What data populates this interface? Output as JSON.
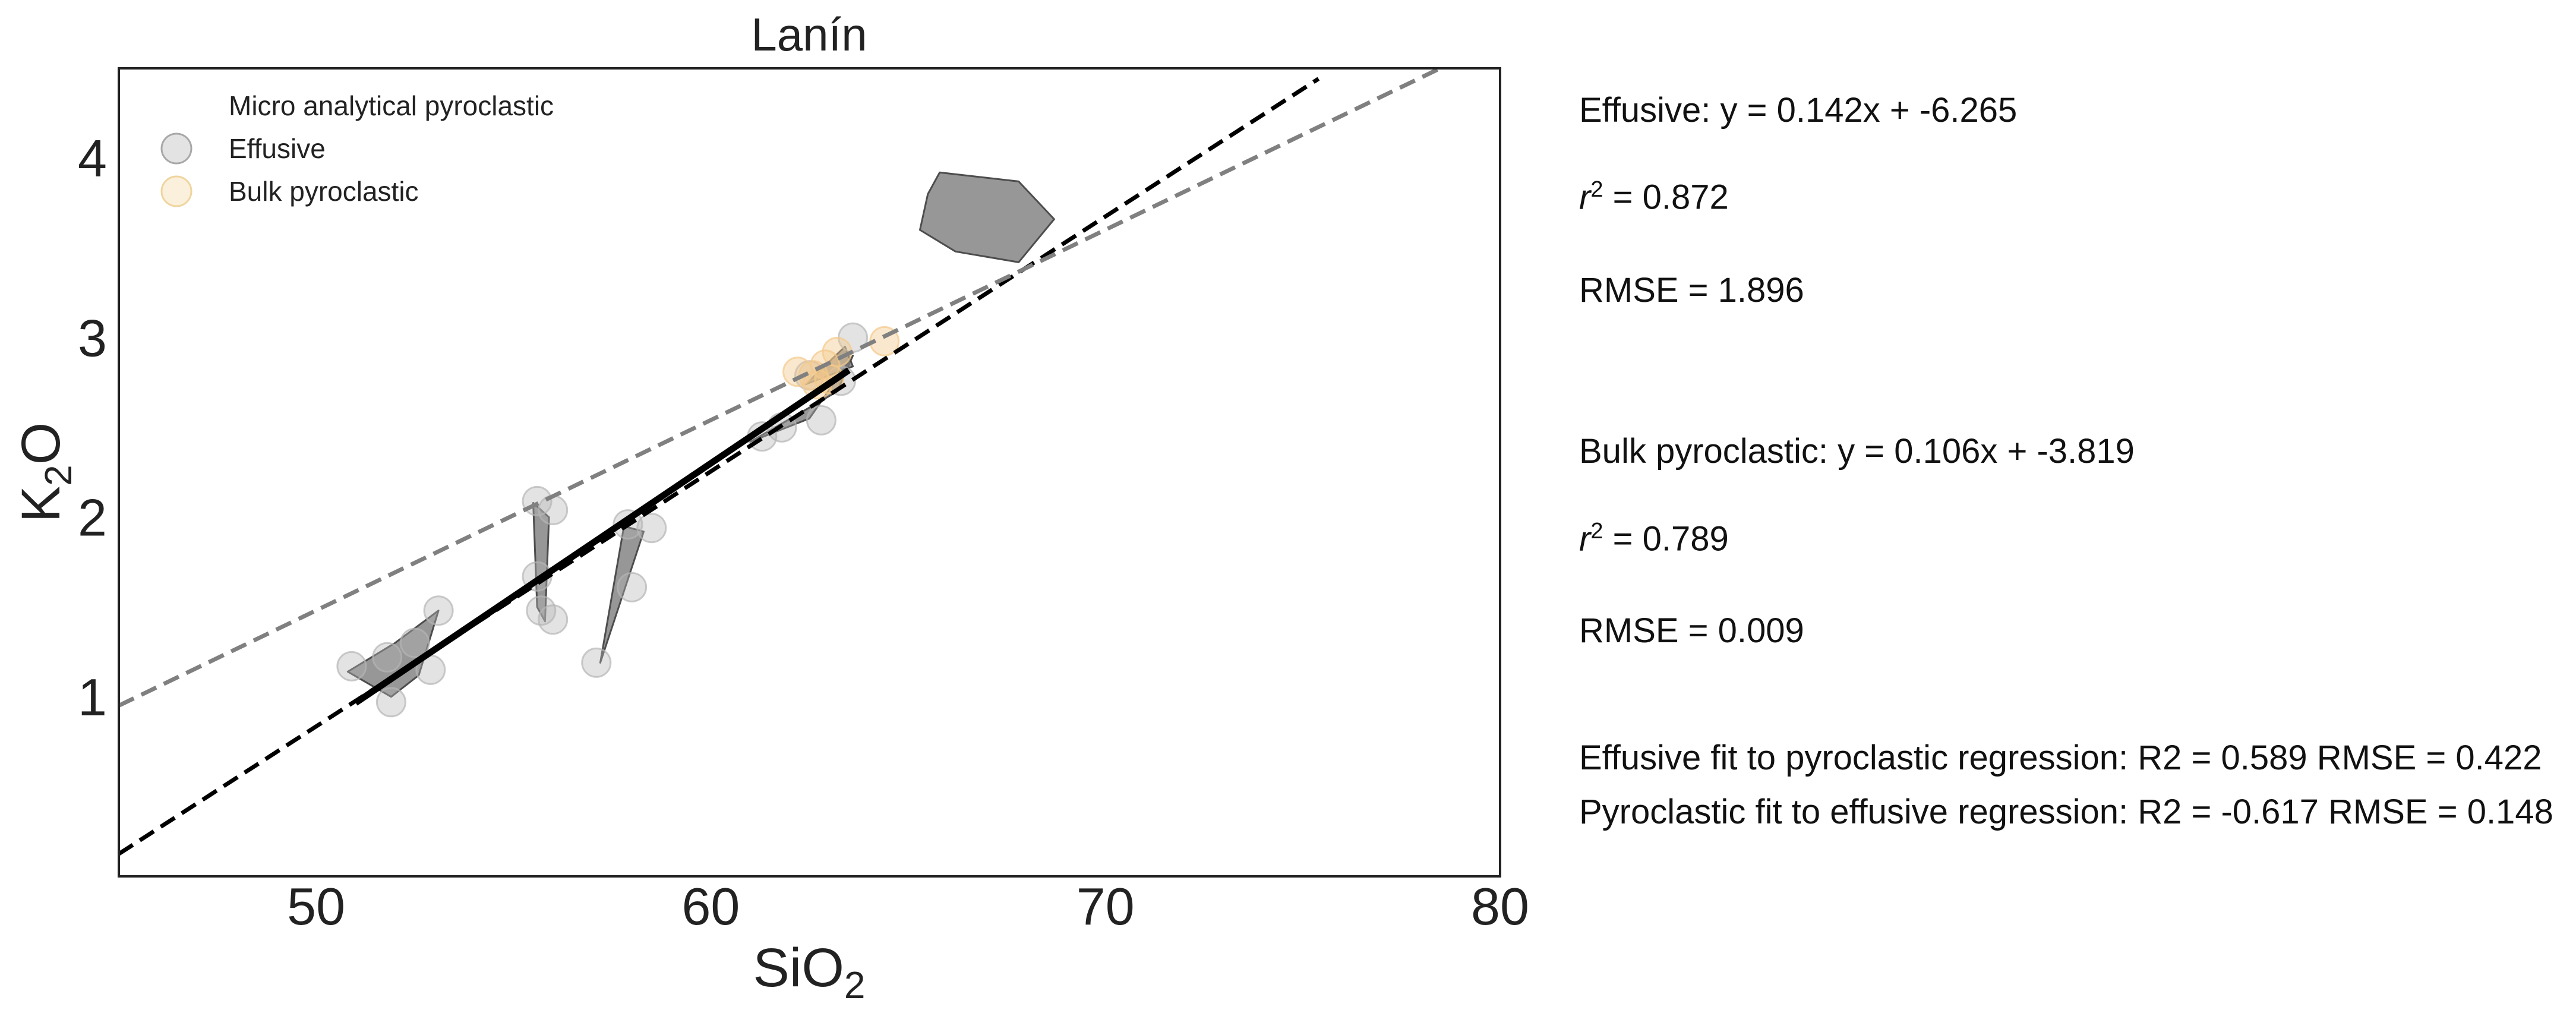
{
  "chart_data": {
    "type": "scatter",
    "title": "Lanín",
    "xlabel_main": "SiO",
    "xlabel_sub": "2",
    "ylabel_main": "K",
    "ylabel_sub": "2",
    "ylabel_tail": "O",
    "xlim": [
      45,
      80
    ],
    "ylim": [
      0,
      4.5
    ],
    "xticks": [
      50,
      60,
      70,
      80
    ],
    "yticks": [
      1,
      2,
      3,
      4
    ],
    "grid": false,
    "legend_position": "top-left",
    "legend": [
      {
        "label": "Micro analytical pyroclastic",
        "marker": "none"
      },
      {
        "label": "Effusive",
        "marker": "circle",
        "color": "#c0c0c0"
      },
      {
        "label": "Bulk pyroclastic",
        "marker": "circle",
        "color": "#f8e2b8"
      }
    ],
    "series": [
      {
        "name": "Effusive",
        "color": "#b5b5b5",
        "points": [
          [
            50.9,
            1.17
          ],
          [
            51.8,
            1.22
          ],
          [
            51.9,
            0.97
          ],
          [
            52.9,
            1.15
          ],
          [
            53.1,
            1.48
          ],
          [
            52.5,
            1.3
          ],
          [
            55.6,
            2.09
          ],
          [
            56.0,
            2.04
          ],
          [
            55.7,
            1.48
          ],
          [
            56.0,
            1.43
          ],
          [
            55.6,
            1.67
          ],
          [
            57.1,
            1.19
          ],
          [
            57.9,
            1.96
          ],
          [
            58.5,
            1.94
          ],
          [
            58.0,
            1.61
          ],
          [
            61.3,
            2.45
          ],
          [
            61.8,
            2.5
          ],
          [
            62.8,
            2.54
          ],
          [
            63.3,
            2.76
          ],
          [
            62.5,
            2.79
          ],
          [
            63.6,
            3.0
          ]
        ]
      },
      {
        "name": "Bulk pyroclastic",
        "color": "#f3c98a",
        "points": [
          [
            62.2,
            2.81
          ],
          [
            62.6,
            2.79
          ],
          [
            62.9,
            2.85
          ],
          [
            63.2,
            2.92
          ],
          [
            64.4,
            2.98
          ],
          [
            62.7,
            2.74
          ],
          [
            63.0,
            2.77
          ]
        ]
      }
    ],
    "hulls": [
      [
        [
          50.8,
          1.14
        ],
        [
          52.0,
          1.3
        ],
        [
          53.1,
          1.48
        ],
        [
          52.6,
          1.12
        ],
        [
          51.9,
          1.0
        ]
      ],
      [
        [
          55.5,
          2.08
        ],
        [
          55.9,
          2.0
        ],
        [
          55.8,
          1.42
        ],
        [
          55.6,
          1.5
        ]
      ],
      [
        [
          57.2,
          1.19
        ],
        [
          57.8,
          1.95
        ],
        [
          58.3,
          1.92
        ]
      ],
      [
        [
          61.0,
          2.42
        ],
        [
          62.5,
          2.55
        ],
        [
          63.6,
          2.9
        ],
        [
          63.2,
          2.7
        ]
      ],
      [
        [
          62.4,
          2.74
        ],
        [
          63.4,
          2.95
        ],
        [
          63.6,
          2.84
        ]
      ],
      [
        [
          65.8,
          3.92
        ],
        [
          67.8,
          3.87
        ],
        [
          68.7,
          3.66
        ],
        [
          67.8,
          3.42
        ],
        [
          66.2,
          3.48
        ],
        [
          65.3,
          3.6
        ],
        [
          65.5,
          3.8
        ]
      ]
    ],
    "lines": [
      {
        "name": "Effusive fit",
        "style": "dashed",
        "color": "#000000",
        "slope": 0.142,
        "intercept": -6.265,
        "x_range": [
          45,
          75.4
        ]
      },
      {
        "name": "Bulk pyroclastic fit",
        "style": "dashed",
        "color": "#808080",
        "slope": 0.106,
        "intercept": -3.819,
        "x_range": [
          45,
          78.5
        ]
      },
      {
        "name": "Micro analytical fit",
        "style": "solid",
        "color": "#000000",
        "slope": 0.1482,
        "intercept": -6.592,
        "x_range": [
          51.0,
          63.5
        ]
      }
    ]
  },
  "stats": {
    "effusive_eq": "Effusive: y = 0.142x + -6.265",
    "effusive_r2_prefix": "r",
    "effusive_r2_sup": "2",
    "effusive_r2_value": " = 0.872",
    "effusive_rmse": "RMSE = 1.896",
    "bulk_eq": "Bulk pyroclastic: y = 0.106x + -3.819",
    "bulk_r2_prefix": "r",
    "bulk_r2_sup": "2",
    "bulk_r2_value": " = 0.789",
    "bulk_rmse": "RMSE = 0.009",
    "cross_fit_1": "Effusive fit to pyroclastic regression: R2 = 0.589 RMSE = 0.422",
    "cross_fit_2": "Pyroclastic fit to effusive regression: R2 = -0.617 RMSE = 0.148"
  }
}
